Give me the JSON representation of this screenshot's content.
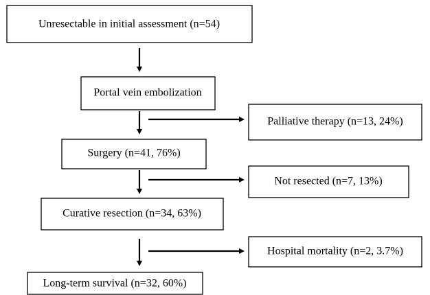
{
  "nodes": [
    {
      "label": "Unresectable in initial assessment (n=54)"
    },
    {
      "label": "Portal vein embolization"
    },
    {
      "label": "Palliative therapy (n=13, 24%)"
    },
    {
      "label": "Surgery (n=41, 76%)"
    },
    {
      "label": "Not resected (n=7, 13%)"
    },
    {
      "label": "Curative resection (n=34, 63%)"
    },
    {
      "label": "Hospital mortality (n=2, 3.7%)"
    },
    {
      "label": "Long-term survival (n=32, 60%)"
    }
  ]
}
